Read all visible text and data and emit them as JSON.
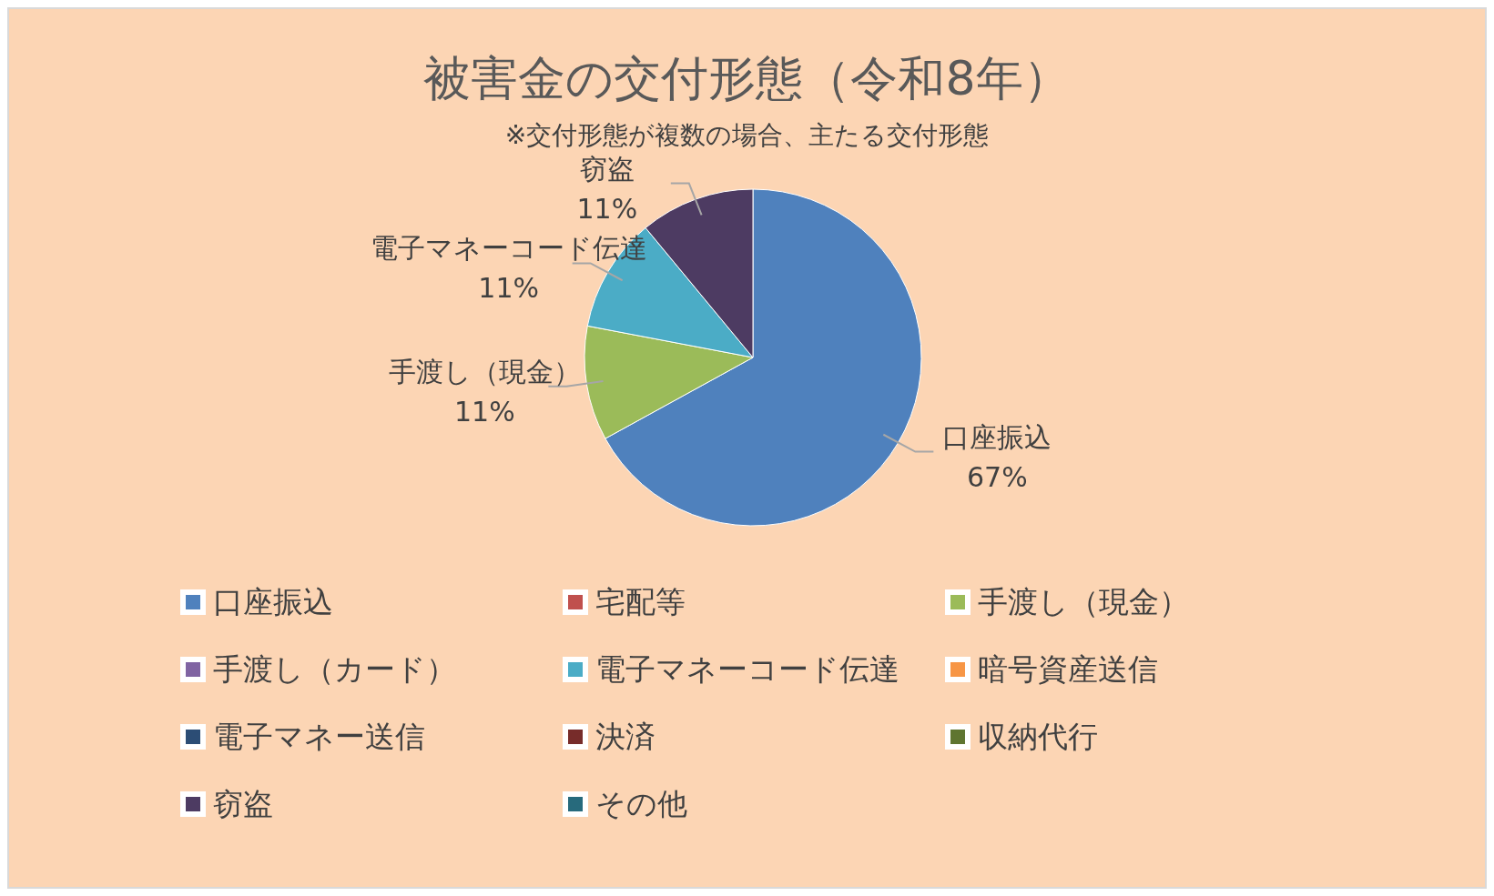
{
  "chart_data": {
    "type": "pie",
    "title": "被害金の交付形態（令和8年）",
    "subtitle": "※交付形態が複数の場合、主たる交付形態",
    "categories": [
      "口座振込",
      "宅配等",
      "手渡し（現金）",
      "手渡し（カード）",
      "電子マネーコード伝達",
      "暗号資産送信",
      "電子マネー送信",
      "決済",
      "収納代行",
      "窃盗",
      "その他"
    ],
    "values": [
      67,
      0,
      11,
      0,
      11,
      0,
      0,
      0,
      0,
      11,
      0
    ],
    "value_labels": [
      "67%",
      null,
      "11%",
      null,
      "11%",
      null,
      null,
      null,
      null,
      "11%",
      null
    ],
    "colors": [
      "#4f81bd",
      "#c0504d",
      "#9bbb59",
      "#8064a2",
      "#4bacc6",
      "#f79646",
      "#2c4d75",
      "#772c2a",
      "#5f7530",
      "#4d3b62",
      "#276a7c"
    ],
    "legend": "bottom"
  }
}
